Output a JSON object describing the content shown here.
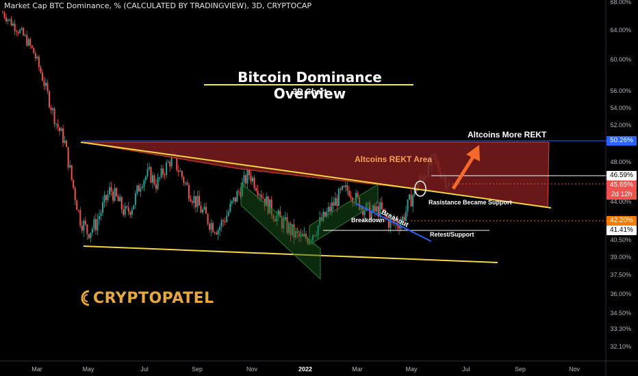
{
  "header": "Market Cap BTC Dominance, % (CALCULATED BY TRADINGVIEW), 3D, CRYPTOCAP",
  "title": "Bitcoin Dominance Overview",
  "subtitle": "3D Chart",
  "logo": "CRYPTOPATEL",
  "annotations": {
    "rekt_area": "Altcoins REKT Area",
    "more_rekt": "Altcoins More REKT",
    "resistance_support": "Rasistance Became Support",
    "breakdown": "Breakdown",
    "breakout": "Breakout",
    "retest": "Retest/Support"
  },
  "colors": {
    "background": "#000000",
    "up_candle": "#26a69a",
    "down_candle": "#ef5350",
    "trendline": "#f5d742",
    "rekt_fill": "#7a1c1c",
    "arrow": "#f36a2a",
    "channel": "#2e7d32",
    "breakout_line": "#2962ff"
  },
  "chart_data": {
    "type": "candlestick",
    "title": "Bitcoin Dominance Overview",
    "y_axis_ticks": [
      "68.00%",
      "64.00%",
      "60.00%",
      "56.00%",
      "54.00%",
      "52.00%",
      "50.26%",
      "48.00%",
      "46.59%",
      "45.65%",
      "44.00%",
      "42.20%",
      "41.41%",
      "40.50%",
      "39.00%",
      "37.50%",
      "36.00%",
      "34.50%",
      "33.30%",
      "32.10%"
    ],
    "x_axis_ticks": [
      "Mar",
      "May",
      "Jul",
      "Sep",
      "Nov",
      "2022",
      "Mar",
      "May",
      "Jul",
      "Sep",
      "Nov"
    ],
    "price_labels": [
      {
        "label": "50.26%",
        "value": 50.26,
        "color": "#2962ff"
      },
      {
        "label": "46.59%",
        "value": 46.59,
        "color": "#ffffff"
      },
      {
        "label": "45.65%",
        "value": 45.65,
        "color": "#ef5350"
      },
      {
        "label": "2d 12h",
        "value": 45.65,
        "color": "#ef5350"
      },
      {
        "label": "42.20%",
        "value": 42.2,
        "color": "#f57c00"
      },
      {
        "label": "41.41%",
        "value": 41.41,
        "color": "#ffffff"
      }
    ],
    "series": [
      {
        "values": [
          66.5,
          65.2,
          64.1,
          62.8,
          61.0,
          58.2,
          55.0,
          52.1,
          50.3,
          46.0,
          42.5,
          41.2,
          41.8,
          43.5,
          45.2,
          44.0,
          42.8,
          43.9,
          46.1,
          46.8,
          45.7,
          47.2,
          48.5,
          47.0,
          45.3,
          44.1,
          43.0,
          42.0,
          41.5,
          42.6,
          44.0,
          45.4,
          46.8,
          45.6,
          44.2,
          43.1,
          42.3,
          41.6,
          40.9,
          40.5,
          40.9,
          41.8,
          42.7,
          43.8,
          44.8,
          45.2,
          44.1,
          43.4,
          42.9,
          43.3,
          42.2,
          41.9,
          42.4,
          44.2,
          45.8,
          47.1,
          48.2,
          46.8,
          45.65
        ]
      }
    ]
  }
}
